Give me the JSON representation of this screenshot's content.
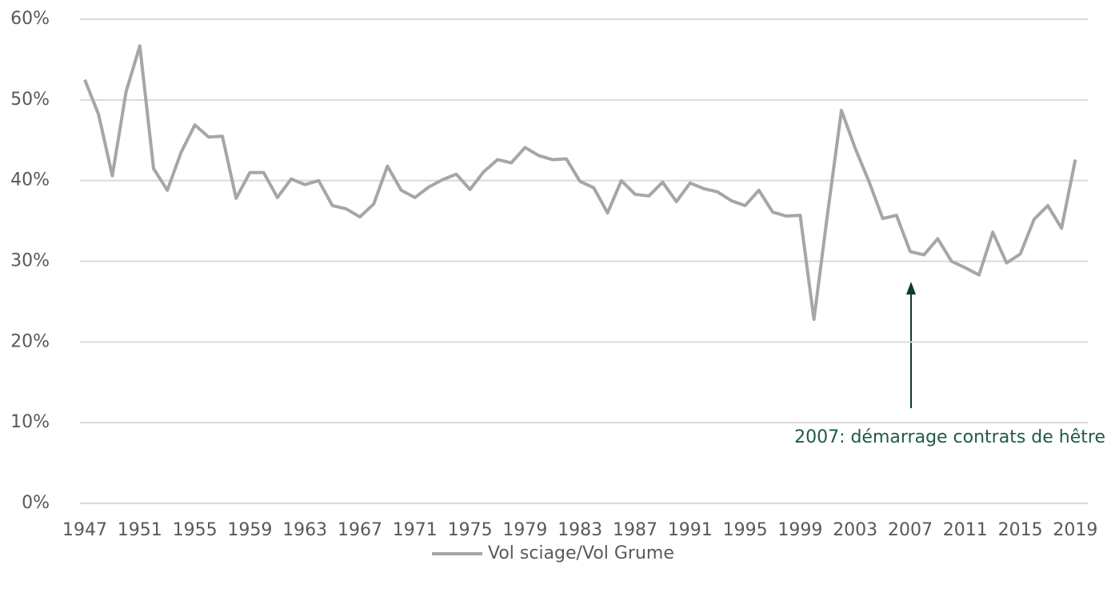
{
  "chart_data": {
    "type": "line",
    "categories": [
      "1947",
      null,
      null,
      null,
      "1951",
      null,
      null,
      null,
      "1955",
      null,
      null,
      null,
      "1959",
      null,
      null,
      null,
      "1963",
      null,
      null,
      null,
      "1967",
      null,
      null,
      null,
      "1971",
      null,
      null,
      null,
      "1975",
      null,
      null,
      null,
      "1979",
      null,
      null,
      null,
      "1983",
      null,
      null,
      null,
      "1987",
      null,
      null,
      null,
      "1991",
      null,
      null,
      null,
      "1995",
      null,
      null,
      null,
      "1999",
      null,
      null,
      null,
      "2003",
      null,
      null,
      null,
      "2007",
      null,
      null,
      null,
      "2011",
      null,
      null,
      null,
      "2015",
      null,
      null,
      null,
      "2019"
    ],
    "series": [
      {
        "name": "Vol sciage/Vol Grume",
        "color": "#a6a6a6",
        "values": [
          52.5,
          48.2,
          40.6,
          51,
          56.7,
          41.5,
          38.8,
          43.5,
          46.9,
          45.4,
          45.5,
          37.8,
          41,
          41,
          37.9,
          40.2,
          39.5,
          40,
          36.9,
          36.5,
          35.5,
          37.1,
          41.8,
          38.8,
          37.9,
          39.2,
          40.1,
          40.8,
          38.9,
          41.1,
          42.6,
          42.2,
          44.1,
          43.1,
          42.6,
          42.7,
          39.9,
          39.1,
          36,
          40,
          38.3,
          38.1,
          39.8,
          37.4,
          39.7,
          39,
          38.6,
          37.5,
          36.9,
          38.8,
          36.1,
          35.6,
          35.7,
          22.8,
          36,
          48.7,
          44,
          39.9,
          35.3,
          35.7,
          31.2,
          30.8,
          32.8,
          30,
          29.2,
          28.3,
          33.6,
          29.8,
          30.9,
          35.2,
          36.9,
          34.1,
          42.6
        ]
      }
    ],
    "ylim": [
      0,
      60
    ],
    "yticks": [
      {
        "value": 0,
        "label": "0%"
      },
      {
        "value": 10,
        "label": "10%"
      },
      {
        "value": 20,
        "label": "20%"
      },
      {
        "value": 30,
        "label": "30%"
      },
      {
        "value": 40,
        "label": "40%"
      },
      {
        "value": 50,
        "label": "50%"
      },
      {
        "value": 60,
        "label": "60%"
      }
    ],
    "grid": true,
    "legend": "bottom",
    "annotation": {
      "text": "2007: démarrage contrats de hêtre",
      "color": "#1e5a4a"
    }
  }
}
